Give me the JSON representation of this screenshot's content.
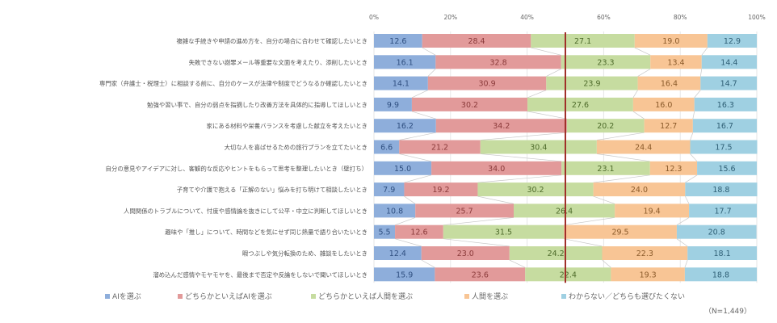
{
  "chart_data": {
    "type": "bar",
    "orientation": "horizontal",
    "stacked": true,
    "percent": true,
    "xlim": [
      0,
      100
    ],
    "xticks": [
      "0%",
      "20%",
      "40%",
      "60%",
      "80%",
      "100%"
    ],
    "reference_line_at": 50,
    "categories": [
      "複雑な手続きや申請の進め方を、自分の場合に合わせて確認したいとき",
      "失敗できない謝罪メール等重要な文面を考えたり、添削したいとき",
      "専門家（弁護士・税理士）に相談する前に、自分のケースが法律や制度でどうなるか確認したいとき",
      "勉強や習い事で、自分の弱点を指摘したり改善方法を具体的に指導してほしいとき",
      "家にある材料や栄養バランスを考慮した献立を考えたいとき",
      "大切な人を喜ばせるための旅行プランを立てたいとき",
      "自分の意見やアイデアに対し、客観的な反応やヒントをもらって思考を整理したいとき（壁打ち）",
      "子育てや介護で抱える「正解のない」悩みを打ち明けて相談したいとき",
      "人間関係のトラブルについて、忖度や感情論を抜きにして公平・中立に判断してほしいとき",
      "趣味や「推し」について、時間などを気にせず同じ熱量で語り合いたいとき",
      "暇つぶしや気分転換のため、雑談をしたいとき",
      "溜め込んだ感情やモヤモヤを、最後まで否定や反論をしないで聞いてほしいとき"
    ],
    "series": [
      {
        "name": "AIを選ぶ",
        "color": "#8eaedb",
        "text_color": "#2f4f80",
        "values": [
          12.6,
          16.1,
          14.1,
          9.9,
          16.2,
          6.6,
          15.0,
          7.9,
          10.8,
          5.5,
          12.4,
          15.9
        ]
      },
      {
        "name": "どちらかといえばAIを選ぶ",
        "color": "#e29a9a",
        "text_color": "#8a3a3a",
        "values": [
          28.4,
          32.8,
          30.9,
          30.2,
          34.2,
          21.2,
          34.0,
          19.2,
          25.7,
          12.6,
          23.0,
          23.6
        ]
      },
      {
        "name": "どちらかといえば人間を選ぶ",
        "color": "#c6dca0",
        "text_color": "#4d6a2a",
        "values": [
          27.1,
          23.3,
          23.9,
          27.6,
          20.2,
          30.4,
          23.1,
          30.2,
          26.4,
          31.5,
          24.2,
          22.4
        ]
      },
      {
        "name": "人間を選ぶ",
        "color": "#f8c595",
        "text_color": "#8a5a2a",
        "values": [
          19.0,
          13.4,
          16.4,
          16.0,
          12.7,
          24.4,
          12.3,
          24.0,
          19.4,
          29.5,
          22.3,
          19.3
        ]
      },
      {
        "name": "わからない／どちらも選びたくない",
        "color": "#9fd0e2",
        "text_color": "#2f5f75",
        "values": [
          12.9,
          14.4,
          14.7,
          16.3,
          16.7,
          17.5,
          15.6,
          18.8,
          17.7,
          20.8,
          18.1,
          18.8
        ]
      }
    ],
    "note": "（N=1,449）",
    "legend_position": "bottom"
  }
}
